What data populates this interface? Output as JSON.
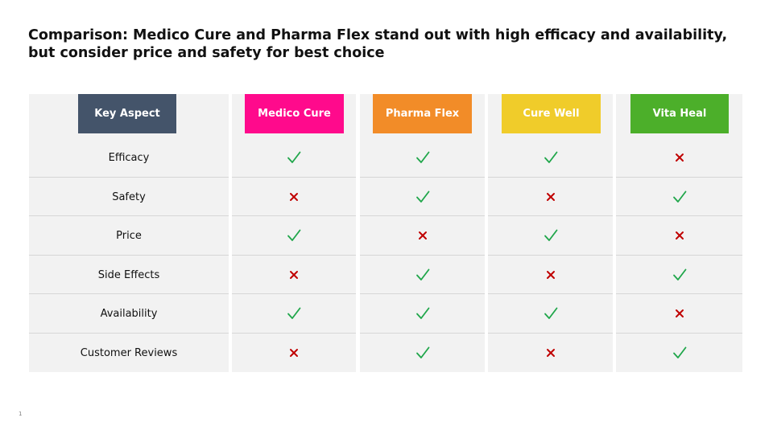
{
  "title": "Comparison: Medico Cure and Pharma Flex stand out with high efficacy and availability, but consider price and safety for best choice",
  "page_number": "1",
  "key_aspect_header": {
    "label": "Key Aspect",
    "color": "#44546a"
  },
  "products": [
    {
      "label": "Medico Cure",
      "color": "#ff0a8c"
    },
    {
      "label": "Pharma Flex",
      "color": "#f28c28"
    },
    {
      "label": "Cure Well",
      "color": "#f0cc2a"
    },
    {
      "label": "Vita Heal",
      "color": "#4caf2a"
    }
  ],
  "status_colors": {
    "check": "#1fa64a",
    "cross": "#c00000"
  },
  "rows": [
    {
      "aspect": "Efficacy",
      "values": [
        "check",
        "check",
        "check",
        "cross"
      ]
    },
    {
      "aspect": "Safety",
      "values": [
        "cross",
        "check",
        "cross",
        "check"
      ]
    },
    {
      "aspect": "Price",
      "values": [
        "check",
        "cross",
        "check",
        "cross"
      ]
    },
    {
      "aspect": "Side Effects",
      "values": [
        "cross",
        "check",
        "cross",
        "check"
      ]
    },
    {
      "aspect": "Availability",
      "values": [
        "check",
        "check",
        "check",
        "cross"
      ]
    },
    {
      "aspect": "Customer Reviews",
      "values": [
        "cross",
        "check",
        "cross",
        "check"
      ]
    }
  ]
}
